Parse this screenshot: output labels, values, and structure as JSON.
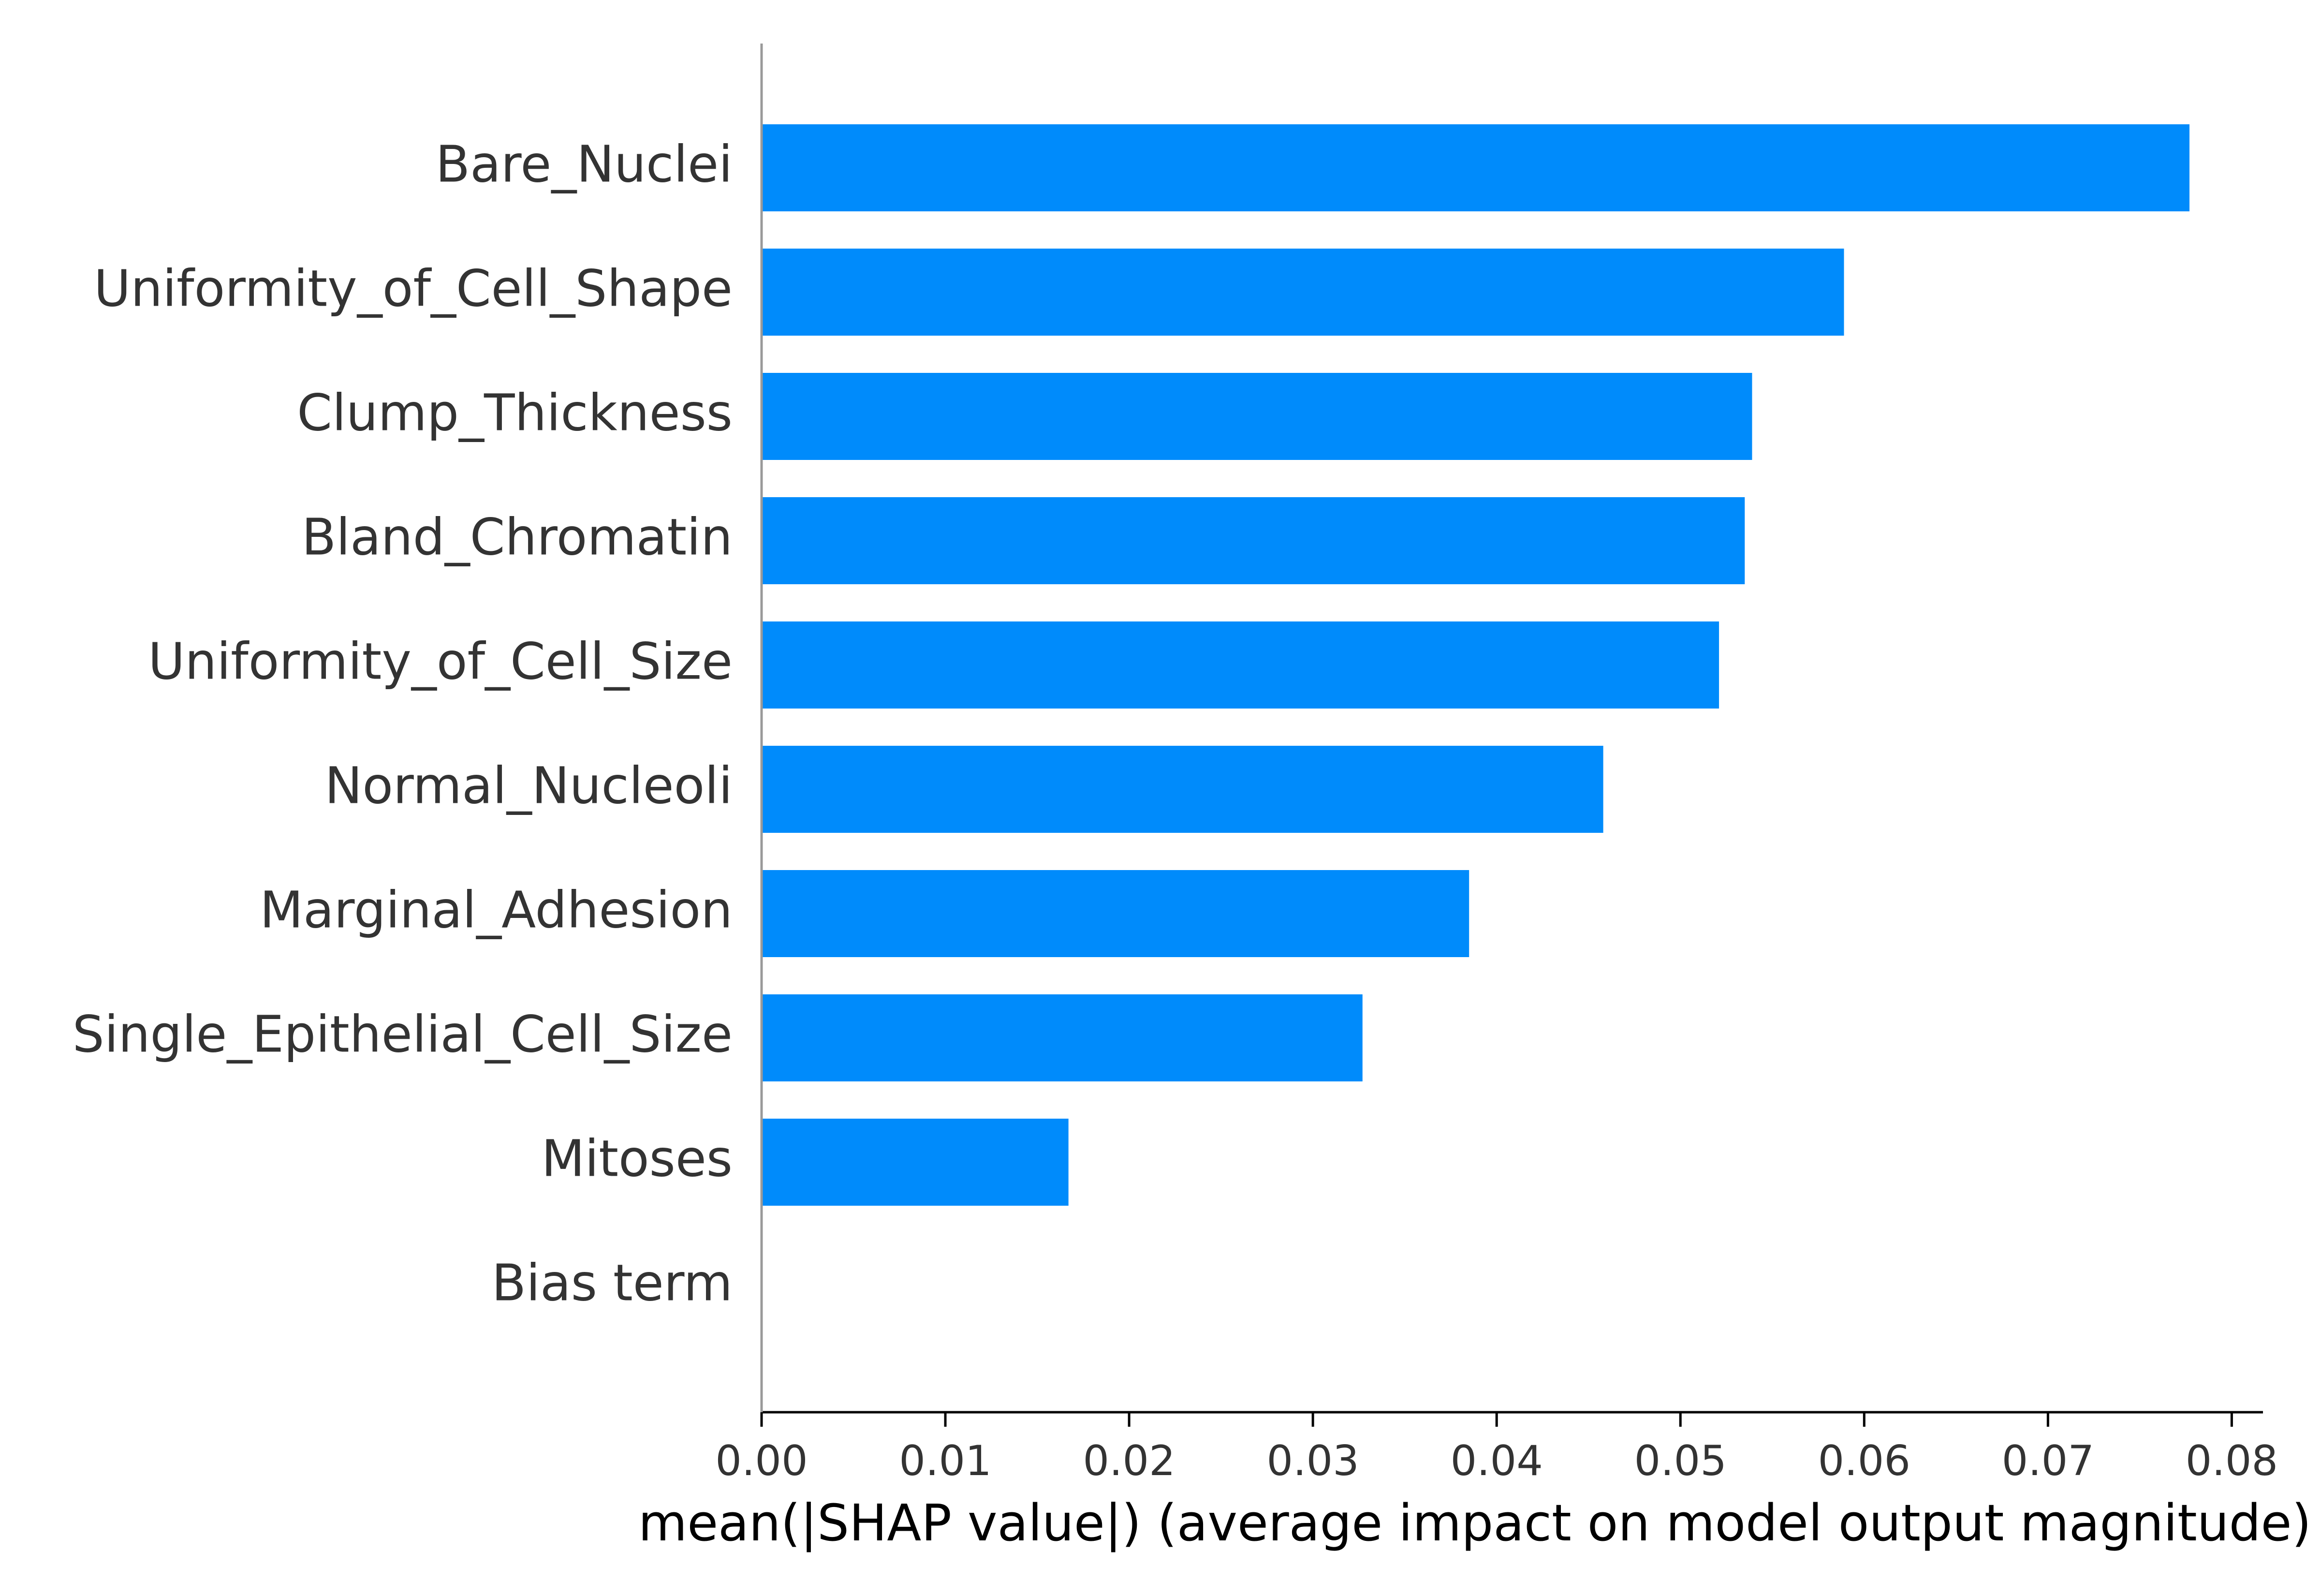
{
  "chart_data": {
    "type": "bar",
    "orientation": "horizontal",
    "categories": [
      "Bare_Nuclei",
      "Uniformity_of_Cell_Shape",
      "Clump_Thickness",
      "Bland_Chromatin",
      "Uniformity_of_Cell_Size",
      "Normal_Nucleoli",
      "Marginal_Adhesion",
      "Single_Epithelial_Cell_Size",
      "Mitoses",
      "Bias term"
    ],
    "values": [
      0.0777,
      0.0589,
      0.0539,
      0.0535,
      0.0521,
      0.0458,
      0.0385,
      0.0327,
      0.0167,
      0.0
    ],
    "xticks": [
      "0.00",
      "0.01",
      "0.02",
      "0.03",
      "0.04",
      "0.05",
      "0.06",
      "0.07",
      "0.08"
    ],
    "xlabel": "mean(|SHAP value|) (average impact on model output magnitude)",
    "ylabel": "",
    "xlim": [
      0,
      0.0817
    ],
    "bar_color": "#008bfb",
    "grid": false
  }
}
